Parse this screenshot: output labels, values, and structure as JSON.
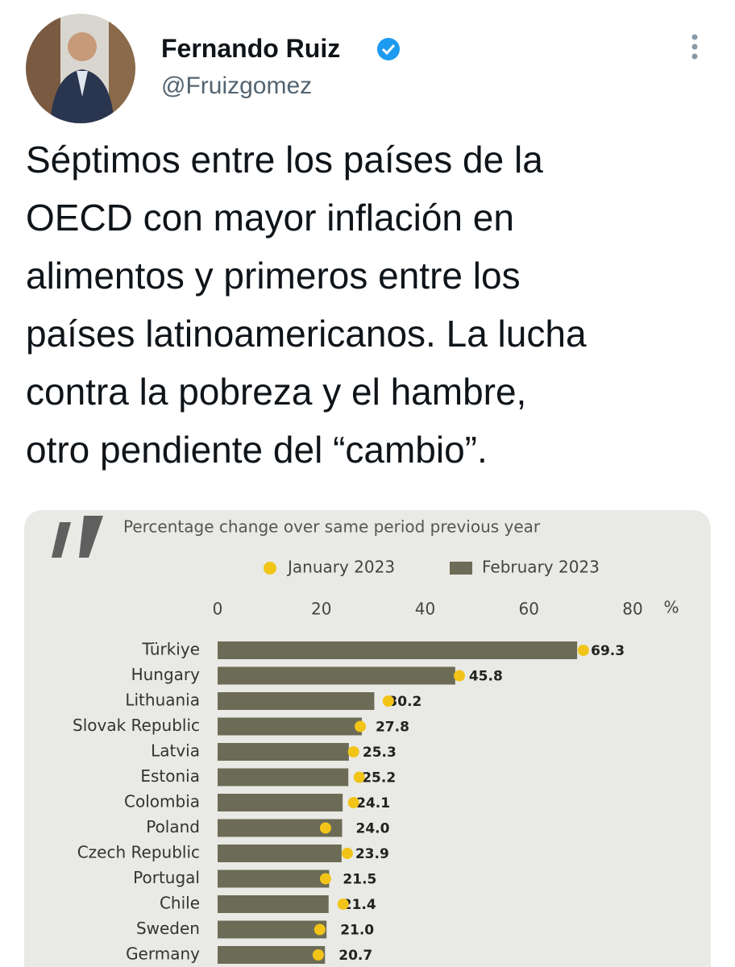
{
  "user": {
    "name": "Fernando Ruiz",
    "handle": "@Fruizgomez"
  },
  "text": [
    "Séptimos entre los países de la",
    "OECD con mayor inflación en",
    "alimentos y primeros entre los",
    "países latinoamericanos. La lucha",
    "contra la pobreza y el hambre,",
    "otro pendiente del “cambio”."
  ],
  "chart_data": {
    "type": "bar",
    "orientation": "horizontal",
    "subtitle": "Percentage change over same period previous year",
    "x_unit": "%",
    "categories": [
      "Türkiye",
      "Hungary",
      "Lithuania",
      "Slovak Republic",
      "Latvia",
      "Estonia",
      "Colombia",
      "Poland",
      "Czech Republic",
      "Portugal",
      "Chile",
      "Sweden",
      "Germany"
    ],
    "series": [
      {
        "name": "January 2023",
        "color": "#f2c418",
        "marker": "dot",
        "values": [
          70.5,
          46.6,
          32.9,
          27.5,
          26.2,
          27.3,
          26.2,
          20.8,
          25.0,
          20.8,
          24.2,
          19.7,
          19.4
        ]
      },
      {
        "name": "February 2023",
        "color": "#6c6c56",
        "marker": "bar",
        "values": [
          69.3,
          45.8,
          30.2,
          27.8,
          25.3,
          25.2,
          24.1,
          24.0,
          23.9,
          21.5,
          21.4,
          21.0,
          20.7
        ],
        "value_labels": [
          "69.3",
          "45.8",
          "30.2",
          "27.8",
          "25.3",
          "25.2",
          "24.1",
          "24.0",
          "23.9",
          "21.5",
          "21.4",
          "21.0",
          "20.7"
        ]
      }
    ],
    "xlim": [
      0,
      80
    ],
    "xticks": [
      0,
      20,
      40,
      60,
      80
    ]
  }
}
